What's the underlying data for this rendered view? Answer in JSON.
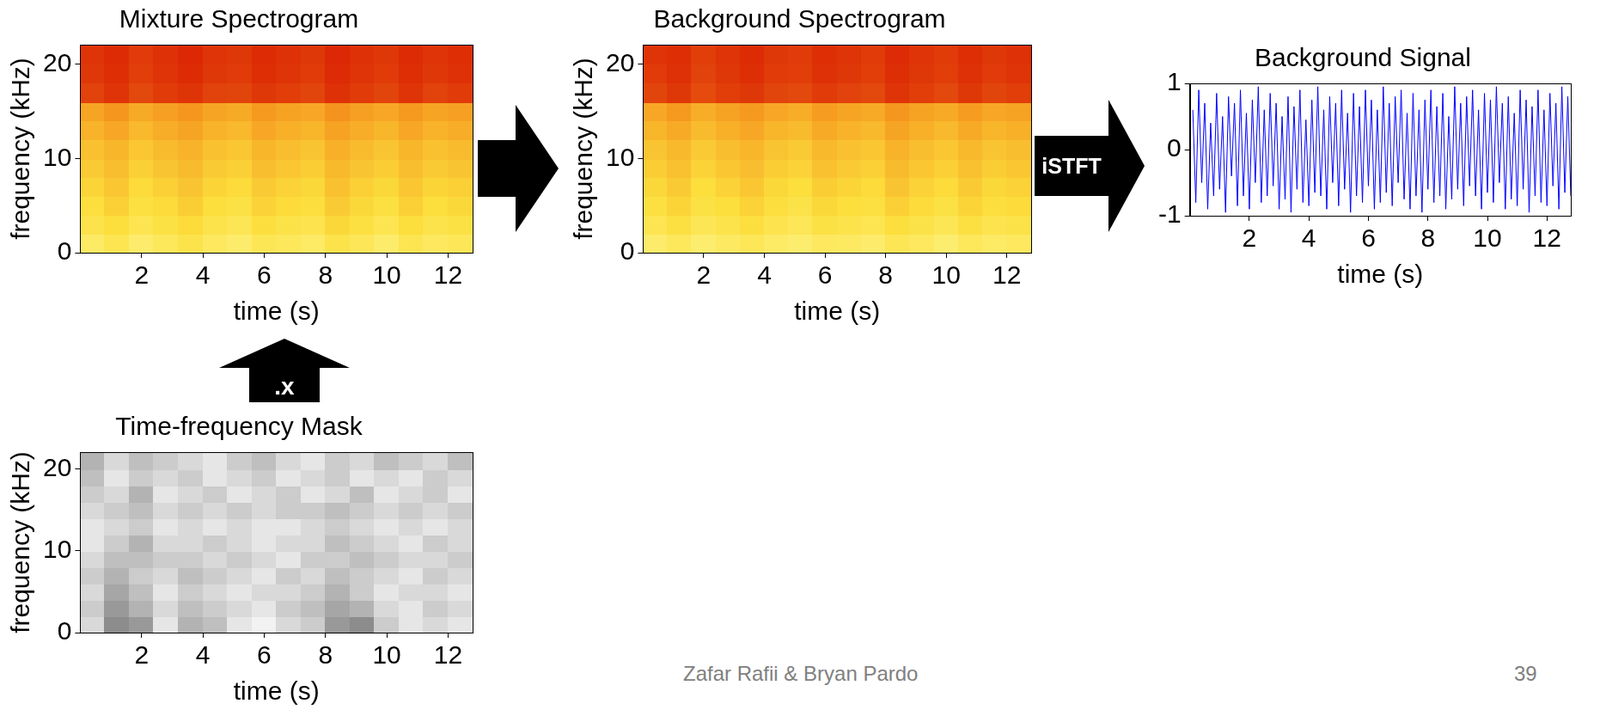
{
  "chart_data": [
    {
      "type": "heatmap",
      "title": "Mixture Spectrogram",
      "x_label": "time (s)",
      "y_label": "frequency (kHz)",
      "xlim": [
        0,
        12.8
      ],
      "xticks": [
        2,
        4,
        6,
        8,
        10,
        12
      ],
      "ylim": [
        0,
        22.05
      ],
      "yticks": [
        0,
        10,
        20
      ],
      "grid": false,
      "color": "hot",
      "cells": [
        [
          0.22,
          0.28,
          0.2,
          0.25,
          0.3,
          0.24,
          0.2,
          0.27,
          0.25,
          0.22,
          0.3,
          0.26,
          0.2,
          0.28,
          0.24,
          0.26
        ],
        [
          0.3,
          0.35,
          0.28,
          0.32,
          0.36,
          0.3,
          0.27,
          0.34,
          0.31,
          0.29,
          0.37,
          0.33,
          0.28,
          0.35,
          0.3,
          0.32
        ],
        [
          0.34,
          0.4,
          0.33,
          0.36,
          0.41,
          0.35,
          0.32,
          0.39,
          0.36,
          0.34,
          0.42,
          0.37,
          0.33,
          0.4,
          0.35,
          0.37
        ],
        [
          0.38,
          0.43,
          0.36,
          0.4,
          0.44,
          0.38,
          0.36,
          0.42,
          0.39,
          0.37,
          0.45,
          0.4,
          0.37,
          0.43,
          0.38,
          0.4
        ],
        [
          0.42,
          0.46,
          0.4,
          0.44,
          0.47,
          0.42,
          0.4,
          0.46,
          0.43,
          0.41,
          0.48,
          0.44,
          0.41,
          0.46,
          0.42,
          0.44
        ],
        [
          0.45,
          0.49,
          0.43,
          0.47,
          0.5,
          0.45,
          0.43,
          0.49,
          0.46,
          0.44,
          0.51,
          0.47,
          0.44,
          0.49,
          0.45,
          0.47
        ],
        [
          0.5,
          0.54,
          0.48,
          0.52,
          0.55,
          0.5,
          0.48,
          0.54,
          0.51,
          0.49,
          0.56,
          0.52,
          0.49,
          0.54,
          0.5,
          0.52
        ],
        [
          0.55,
          0.6,
          0.53,
          0.57,
          0.6,
          0.55,
          0.53,
          0.59,
          0.56,
          0.54,
          0.61,
          0.57,
          0.54,
          0.59,
          0.55,
          0.57
        ],
        [
          0.86,
          0.9,
          0.84,
          0.88,
          0.9,
          0.86,
          0.85,
          0.89,
          0.87,
          0.85,
          0.91,
          0.88,
          0.85,
          0.9,
          0.86,
          0.88
        ],
        [
          0.89,
          0.92,
          0.87,
          0.9,
          0.93,
          0.89,
          0.88,
          0.92,
          0.9,
          0.88,
          0.93,
          0.9,
          0.88,
          0.92,
          0.89,
          0.91
        ],
        [
          0.9,
          0.93,
          0.88,
          0.91,
          0.94,
          0.9,
          0.89,
          0.93,
          0.91,
          0.89,
          0.94,
          0.91,
          0.89,
          0.93,
          0.9,
          0.92
        ]
      ]
    },
    {
      "type": "heatmap",
      "title": "Background Spectrogram",
      "x_label": "time (s)",
      "y_label": "frequency (kHz)",
      "xlim": [
        0,
        12.8
      ],
      "xticks": [
        2,
        4,
        6,
        8,
        10,
        12
      ],
      "ylim": [
        0,
        22.05
      ],
      "yticks": [
        0,
        10,
        20
      ],
      "grid": false,
      "color": "hot",
      "cells": [
        [
          0.2,
          0.25,
          0.19,
          0.23,
          0.26,
          0.22,
          0.19,
          0.24,
          0.23,
          0.2,
          0.27,
          0.24,
          0.19,
          0.25,
          0.22,
          0.24
        ],
        [
          0.28,
          0.33,
          0.27,
          0.3,
          0.34,
          0.29,
          0.26,
          0.32,
          0.3,
          0.28,
          0.35,
          0.31,
          0.27,
          0.33,
          0.29,
          0.31
        ],
        [
          0.33,
          0.38,
          0.32,
          0.35,
          0.39,
          0.34,
          0.31,
          0.37,
          0.35,
          0.33,
          0.4,
          0.36,
          0.32,
          0.38,
          0.34,
          0.36
        ],
        [
          0.37,
          0.42,
          0.35,
          0.39,
          0.43,
          0.37,
          0.35,
          0.41,
          0.38,
          0.36,
          0.44,
          0.39,
          0.36,
          0.42,
          0.37,
          0.39
        ],
        [
          0.41,
          0.45,
          0.39,
          0.43,
          0.46,
          0.41,
          0.39,
          0.45,
          0.42,
          0.4,
          0.47,
          0.43,
          0.4,
          0.45,
          0.41,
          0.43
        ],
        [
          0.44,
          0.48,
          0.42,
          0.46,
          0.49,
          0.44,
          0.42,
          0.48,
          0.45,
          0.43,
          0.5,
          0.46,
          0.43,
          0.48,
          0.44,
          0.46
        ],
        [
          0.49,
          0.53,
          0.47,
          0.51,
          0.54,
          0.49,
          0.47,
          0.53,
          0.5,
          0.48,
          0.55,
          0.51,
          0.48,
          0.53,
          0.49,
          0.51
        ],
        [
          0.54,
          0.59,
          0.52,
          0.56,
          0.59,
          0.54,
          0.52,
          0.58,
          0.55,
          0.53,
          0.6,
          0.56,
          0.53,
          0.58,
          0.54,
          0.56
        ],
        [
          0.85,
          0.89,
          0.83,
          0.87,
          0.89,
          0.85,
          0.84,
          0.88,
          0.86,
          0.84,
          0.9,
          0.87,
          0.84,
          0.89,
          0.85,
          0.87
        ],
        [
          0.88,
          0.91,
          0.86,
          0.89,
          0.92,
          0.88,
          0.87,
          0.91,
          0.89,
          0.87,
          0.92,
          0.89,
          0.87,
          0.91,
          0.88,
          0.9
        ],
        [
          0.9,
          0.92,
          0.87,
          0.9,
          0.93,
          0.89,
          0.88,
          0.92,
          0.9,
          0.88,
          0.93,
          0.9,
          0.88,
          0.92,
          0.89,
          0.91
        ]
      ]
    },
    {
      "type": "line",
      "title": "Background Signal",
      "x_label": "time (s)",
      "xlim": [
        0,
        12.8
      ],
      "xticks": [
        2,
        4,
        6,
        8,
        10,
        12
      ],
      "ylim": [
        -1,
        1
      ],
      "yticks": [
        -1,
        0,
        1
      ],
      "grid": false,
      "color": "#0000ff",
      "x": [
        0.1,
        0.2,
        0.3,
        0.4,
        0.5,
        0.6,
        0.7,
        0.8,
        0.9,
        1.0,
        1.1,
        1.2,
        1.3,
        1.4,
        1.5,
        1.6,
        1.7,
        1.8,
        1.9,
        2.0,
        2.1,
        2.2,
        2.3,
        2.4,
        2.5,
        2.6,
        2.7,
        2.8,
        2.9,
        3.0,
        3.1,
        3.2,
        3.3,
        3.4,
        3.5,
        3.6,
        3.7,
        3.8,
        3.9,
        4.0,
        4.1,
        4.2,
        4.3,
        4.4,
        4.5,
        4.6,
        4.7,
        4.8,
        4.9,
        5.0,
        5.1,
        5.2,
        5.3,
        5.4,
        5.5,
        5.6,
        5.7,
        5.8,
        5.9,
        6.0,
        6.1,
        6.2,
        6.3,
        6.4,
        6.5,
        6.6,
        6.7,
        6.8,
        6.9,
        7.0,
        7.1,
        7.2,
        7.3,
        7.4,
        7.5,
        7.6,
        7.7,
        7.8,
        7.9,
        8.0,
        8.1,
        8.2,
        8.3,
        8.4,
        8.5,
        8.6,
        8.7,
        8.8,
        8.9,
        9.0,
        9.1,
        9.2,
        9.3,
        9.4,
        9.5,
        9.6,
        9.7,
        9.8,
        9.9,
        10.0,
        10.1,
        10.2,
        10.3,
        10.4,
        10.5,
        10.6,
        10.7,
        10.8,
        10.9,
        11.0,
        11.1,
        11.2,
        11.3,
        11.4,
        11.5,
        11.6,
        11.7,
        11.8,
        11.9,
        12.0,
        12.1,
        12.2,
        12.3,
        12.4,
        12.5,
        12.6,
        12.7,
        12.8
      ],
      "values": [
        0.6,
        -0.8,
        0.9,
        -0.5,
        0.7,
        -0.9,
        0.4,
        -0.7,
        0.85,
        -0.6,
        0.5,
        -0.95,
        0.8,
        -0.4,
        0.7,
        -0.85,
        0.9,
        -0.7,
        0.55,
        -0.9,
        0.75,
        -0.5,
        0.95,
        -0.8,
        0.6,
        -0.7,
        0.85,
        -0.55,
        0.7,
        -0.9,
        0.5,
        -0.75,
        0.8,
        -0.95,
        0.65,
        -0.6,
        0.9,
        -0.8,
        0.45,
        -0.85,
        0.75,
        -0.65,
        0.95,
        -0.7,
        0.6,
        -0.9,
        0.8,
        -0.5,
        0.7,
        -0.85,
        0.9,
        -0.6,
        0.55,
        -0.95,
        0.85,
        -0.7,
        0.65,
        -0.8,
        0.9,
        -0.55,
        0.75,
        -0.9,
        0.6,
        -0.8,
        0.95,
        -0.65,
        0.7,
        -0.85,
        0.8,
        -0.5,
        0.9,
        -0.75,
        0.55,
        -0.9,
        0.85,
        -0.7,
        0.6,
        -0.95,
        0.75,
        -0.6,
        0.9,
        -0.8,
        0.65,
        -0.7,
        0.85,
        -0.9,
        0.5,
        -0.75,
        0.95,
        -0.6,
        0.7,
        -0.85,
        0.8,
        -0.55,
        0.9,
        -0.7,
        0.6,
        -0.9,
        0.85,
        -0.65,
        0.75,
        -0.8,
        0.95,
        -0.5,
        0.7,
        -0.9,
        0.8,
        -0.75,
        0.55,
        -0.85,
        0.9,
        -0.6,
        0.75,
        -0.95,
        0.65,
        -0.7,
        0.9,
        -0.8,
        0.6,
        -0.85,
        0.85,
        -0.55,
        0.7,
        -0.9,
        0.95,
        -0.65,
        0.8,
        -0.7
      ]
    },
    {
      "type": "heatmap",
      "title": "Time-frequency Mask",
      "x_label": "time (s)",
      "y_label": "frequency (kHz)",
      "xlim": [
        0,
        12.8
      ],
      "xticks": [
        2,
        4,
        6,
        8,
        10,
        12
      ],
      "ylim": [
        0,
        22.05
      ],
      "yticks": [
        0,
        10,
        20
      ],
      "grid": false,
      "color": "gray",
      "cells": [
        [
          0.85,
          0.55,
          0.6,
          0.9,
          0.7,
          0.75,
          0.9,
          0.95,
          0.85,
          0.8,
          0.6,
          0.55,
          0.8,
          0.9,
          0.85,
          0.9
        ],
        [
          0.8,
          0.6,
          0.7,
          0.85,
          0.75,
          0.8,
          0.85,
          0.9,
          0.8,
          0.75,
          0.65,
          0.7,
          0.85,
          0.9,
          0.8,
          0.85
        ],
        [
          0.85,
          0.65,
          0.75,
          0.9,
          0.8,
          0.85,
          0.9,
          0.85,
          0.85,
          0.8,
          0.7,
          0.8,
          0.9,
          0.85,
          0.85,
          0.9
        ],
        [
          0.8,
          0.7,
          0.8,
          0.85,
          0.75,
          0.8,
          0.85,
          0.9,
          0.8,
          0.85,
          0.75,
          0.8,
          0.85,
          0.9,
          0.8,
          0.85
        ],
        [
          0.85,
          0.75,
          0.75,
          0.8,
          0.8,
          0.85,
          0.8,
          0.85,
          0.9,
          0.8,
          0.8,
          0.75,
          0.8,
          0.85,
          0.85,
          0.8
        ],
        [
          0.9,
          0.8,
          0.7,
          0.85,
          0.85,
          0.8,
          0.85,
          0.9,
          0.85,
          0.85,
          0.75,
          0.8,
          0.85,
          0.9,
          0.8,
          0.85
        ],
        [
          0.9,
          0.85,
          0.8,
          0.9,
          0.85,
          0.9,
          0.85,
          0.9,
          0.9,
          0.85,
          0.8,
          0.85,
          0.9,
          0.85,
          0.9,
          0.85
        ],
        [
          0.85,
          0.8,
          0.75,
          0.85,
          0.8,
          0.85,
          0.8,
          0.85,
          0.8,
          0.8,
          0.75,
          0.8,
          0.85,
          0.8,
          0.85,
          0.8
        ],
        [
          0.8,
          0.85,
          0.7,
          0.9,
          0.85,
          0.8,
          0.9,
          0.85,
          0.8,
          0.9,
          0.85,
          0.75,
          0.9,
          0.85,
          0.8,
          0.9
        ],
        [
          0.75,
          0.9,
          0.8,
          0.85,
          0.8,
          0.9,
          0.85,
          0.8,
          0.9,
          0.85,
          0.8,
          0.9,
          0.85,
          0.9,
          0.8,
          0.85
        ],
        [
          0.7,
          0.85,
          0.75,
          0.8,
          0.85,
          0.9,
          0.8,
          0.75,
          0.85,
          0.9,
          0.8,
          0.85,
          0.75,
          0.8,
          0.85,
          0.75
        ]
      ]
    }
  ],
  "arrows": {
    "multiply": ".x",
    "istft": "iSTFT"
  },
  "footer": {
    "authors": "Zafar Rafii & Bryan Pardo",
    "page": "39"
  }
}
